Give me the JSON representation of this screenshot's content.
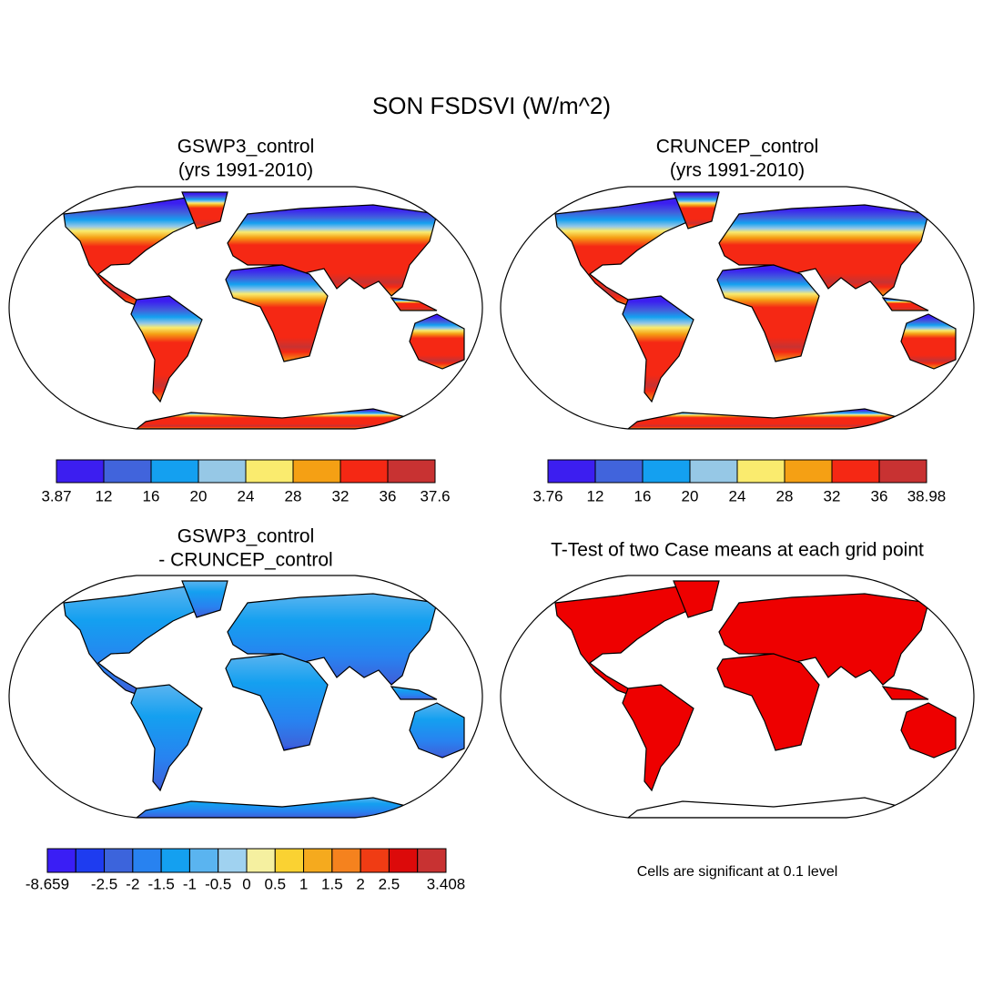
{
  "title": "SON FSDSVI (W/m^2)",
  "panels": [
    {
      "title": [
        "GSWP3_control",
        "(yrs 1991-2010)"
      ],
      "colorbar": {
        "colors": [
          "#3c1ef0",
          "#4164dc",
          "#14a0f0",
          "#96c8e6",
          "#faeb6e",
          "#f5a014",
          "#f52814",
          "#c83232"
        ],
        "ticks": [
          3.87,
          12,
          16,
          20,
          24,
          28,
          32,
          36,
          37.6
        ]
      }
    },
    {
      "title": [
        "CRUNCEP_control",
        "(yrs 1991-2010)"
      ],
      "colorbar": {
        "colors": [
          "#3c1ef0",
          "#4164dc",
          "#14a0f0",
          "#96c8e6",
          "#faeb6e",
          "#f5a014",
          "#f52814",
          "#c83232"
        ],
        "ticks": [
          3.76,
          12,
          16,
          20,
          24,
          28,
          32,
          36,
          38.98
        ]
      }
    },
    {
      "title": [
        "GSWP3_control",
        "- CRUNCEP_control"
      ],
      "colorbar": {
        "colors": [
          "#3a1ef5",
          "#1e3cf0",
          "#3c64dc",
          "#2882f0",
          "#14a0f0",
          "#5ab4f0",
          "#a0d2f0",
          "#f5f0a0",
          "#fad232",
          "#f5aa1e",
          "#f5821e",
          "#f03c14",
          "#dc0a0a",
          "#c83232"
        ],
        "ticks": [
          -8.659,
          null,
          -2.5,
          -2,
          -1.5,
          -1,
          -0.5,
          0,
          0.5,
          1,
          1.5,
          2,
          2.5,
          null,
          3.408
        ]
      }
    },
    {
      "title": [
        "T-Test of two Case means at each grid point"
      ],
      "note": "Cells are significant at 0.1 level"
    }
  ]
}
